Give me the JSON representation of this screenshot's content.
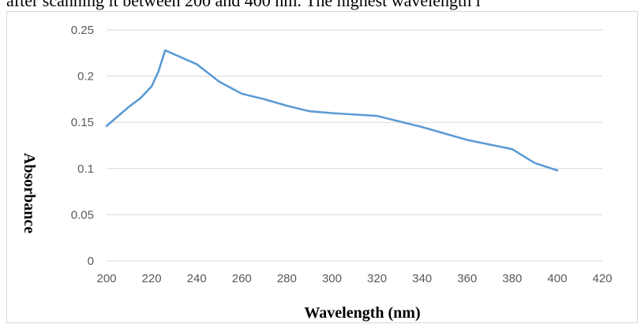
{
  "header_text": "after scanning it between 200 and 400 nm. The highest wavelength i",
  "chart_data": {
    "type": "line",
    "title": "",
    "xlabel": "Wavelength (nm)",
    "ylabel": "Absorbance",
    "xlim": [
      200,
      420
    ],
    "ylim": [
      0,
      0.25
    ],
    "x_ticks": [
      200,
      220,
      240,
      260,
      280,
      300,
      320,
      340,
      360,
      380,
      400,
      420
    ],
    "y_ticks": [
      "0",
      "0.05",
      "0.1",
      "0.15",
      "0.2",
      "0.25"
    ],
    "grid": "horizontal",
    "series": [
      {
        "color": "#5b9bd5",
        "x": [
          200,
          210,
          215,
          220,
          223,
          226,
          240,
          250,
          260,
          270,
          280,
          290,
          300,
          320,
          340,
          360,
          380,
          390,
          400
        ],
        "y": [
          0.146,
          0.167,
          0.176,
          0.189,
          0.205,
          0.228,
          0.213,
          0.194,
          0.181,
          0.175,
          0.168,
          0.162,
          0.16,
          0.157,
          0.145,
          0.131,
          0.121,
          0.106,
          0.098
        ]
      }
    ]
  }
}
